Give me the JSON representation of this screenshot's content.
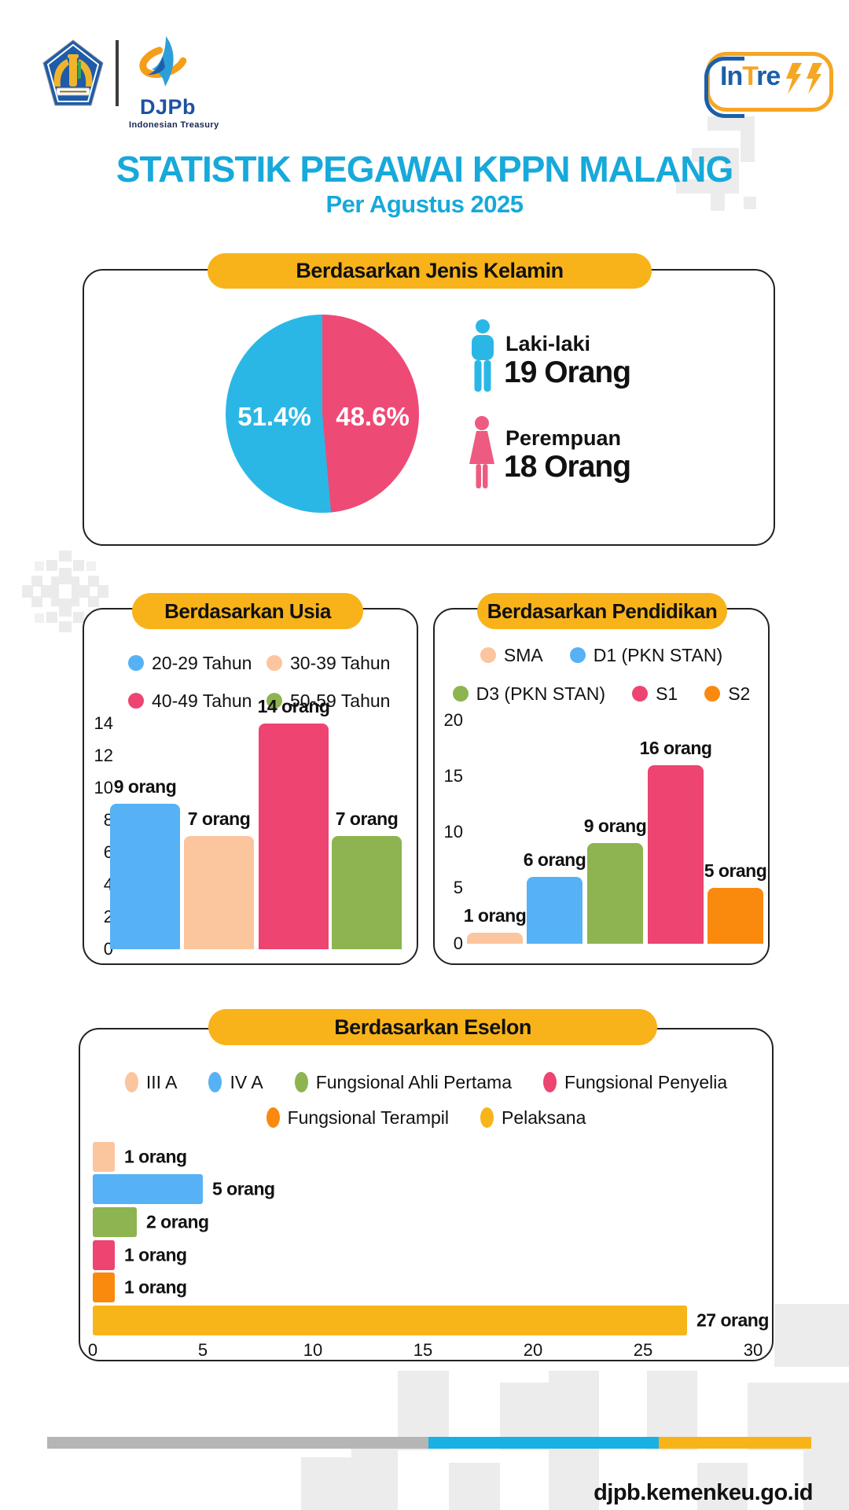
{
  "page": {
    "title": "STATISTIK PEGAWAI KPPN MALANG",
    "subtitle": "Per Agustus 2025",
    "website": "djpb.kemenkeu.go.id"
  },
  "logos": {
    "djpb_name": "DJPb",
    "djpb_tagline": "Indonesian Treasury",
    "intress_in": "In",
    "intress_t": "T",
    "intress_re": "re"
  },
  "colors": {
    "title_cyan": "#17A9DA",
    "pill_orange": "#F8B31B",
    "pie_blue": "#2BB7E6",
    "pie_pink": "#EE4A76",
    "bar_blue": "#56B2F4",
    "peach": "#FBC59E",
    "green": "#8DB450",
    "pink": "#ED4472",
    "orange": "#F98A0D",
    "amber": "#F7B51A",
    "male_icon": "#2BB7E6",
    "female_icon": "#EE5B80",
    "footer_gray": "#B5B5B5",
    "footer_cyan": "#19B0E3",
    "footer_yellow": "#F8B319",
    "deco_gray": "#ECECEC",
    "djpb_blue": "#1D52A2",
    "intress_orange": "#F5A623",
    "intress_blue": "#1B5FAA",
    "kemenkeu_blue": "#1F5BA8",
    "kemenkeu_gold": "#F0B42C"
  },
  "chart_data": [
    {
      "id": "gender",
      "type": "pie",
      "title": "Berdasarkan Jenis Kelamin",
      "slices": [
        {
          "label": "Laki-laki",
          "value": 19,
          "pct": "51.4%",
          "pct_value": 51.4,
          "unit_label": "19 Orang",
          "color": "#2BB7E6"
        },
        {
          "label": "Perempuan",
          "value": 18,
          "pct": "48.6%",
          "pct_value": 48.6,
          "unit_label": "18 Orang",
          "color": "#EE4A76"
        }
      ]
    },
    {
      "id": "usia",
      "type": "bar",
      "title": "Berdasarkan Usia",
      "categories": [
        "20-29 Tahun",
        "30-39 Tahun",
        "40-49 Tahun",
        "50-59 Tahun"
      ],
      "values": [
        9,
        7,
        14,
        7
      ],
      "labels": [
        "9 orang",
        "7 orang",
        "14 orang",
        "7 orang"
      ],
      "colors": [
        "#56B2F4",
        "#FBC59E",
        "#ED4472",
        "#8DB450"
      ],
      "yticks": [
        14,
        12,
        10,
        8,
        6,
        4,
        2,
        0
      ],
      "ylim": [
        0,
        14
      ],
      "grid": false,
      "legend_position": "top"
    },
    {
      "id": "pendidikan",
      "type": "bar",
      "title": "Berdasarkan Pendidikan",
      "categories": [
        "SMA",
        "D1 (PKN STAN)",
        "D3 (PKN STAN)",
        "S1",
        "S2"
      ],
      "values": [
        1,
        6,
        9,
        16,
        5
      ],
      "labels": [
        "1 orang",
        "6 orang",
        "9 orang",
        "16 orang",
        "5 orang"
      ],
      "colors": [
        "#FBC59E",
        "#56B2F4",
        "#8DB450",
        "#ED4472",
        "#F98A0D"
      ],
      "yticks": [
        20,
        15,
        10,
        5,
        0
      ],
      "ylim": [
        0,
        20
      ],
      "grid": false,
      "legend_position": "top"
    },
    {
      "id": "eselon",
      "type": "hbar",
      "title": "Berdasarkan Eselon",
      "categories": [
        "III A",
        "IV A",
        "Fungsional Ahli Pertama",
        "Fungsional Penyelia",
        "Fungsional Terampil",
        "Pelaksana"
      ],
      "values": [
        1,
        5,
        2,
        1,
        1,
        27
      ],
      "labels": [
        "1 orang",
        "5 orang",
        "2 orang",
        "1 orang",
        "1 orang",
        "27 orang"
      ],
      "colors": [
        "#FBC59E",
        "#56B2F4",
        "#8DB450",
        "#ED4472",
        "#F98A0D",
        "#F7B51A"
      ],
      "xticks": [
        0,
        5,
        10,
        15,
        20,
        25,
        30
      ],
      "xlim": [
        0,
        30
      ],
      "grid": false,
      "legend_position": "top"
    }
  ]
}
